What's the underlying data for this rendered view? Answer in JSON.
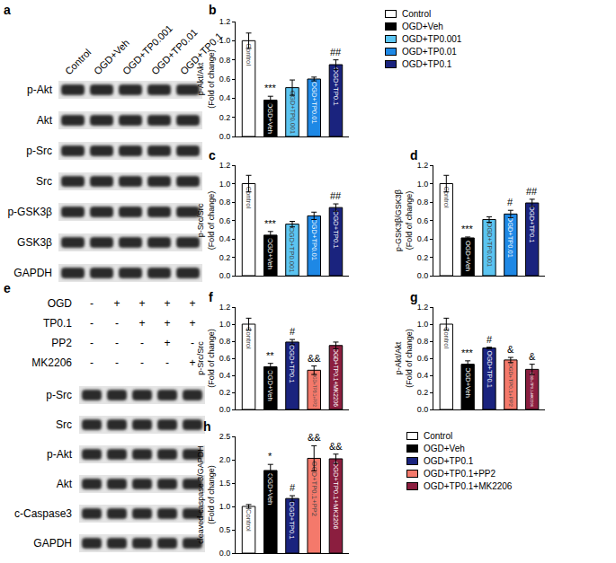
{
  "chart_data": [
    {
      "type": "bar",
      "title": "b",
      "y_label": "p-Akt/Akt (Fold of change)",
      "categories": [
        "Control",
        "OGD+Veh",
        "OGD+TP0.001",
        "OGD+TP0.01",
        "OGD+TP0.1"
      ],
      "values": [
        1.0,
        0.38,
        0.51,
        0.6,
        0.75
      ],
      "errors": [
        0.08,
        0.04,
        0.08,
        0.02,
        0.05
      ],
      "annotations": [
        null,
        "***",
        null,
        null,
        "##"
      ],
      "colors": [
        "#ffffff",
        "#000000",
        "#5bc4f1",
        "#1e88e5",
        "#1a237e"
      ],
      "ylim": [
        0,
        1.2
      ],
      "yticks": [
        {
          "value": 0,
          "label": "0.0"
        },
        {
          "value": 0.2,
          "label": "0.2"
        },
        {
          "value": 0.4,
          "label": "0.4"
        },
        {
          "value": 0.6,
          "label": "0.6"
        },
        {
          "value": 0.8,
          "label": "0.8"
        },
        {
          "value": 1.0,
          "label": "1.0"
        },
        {
          "value": 1.2,
          "label": "1.2"
        }
      ],
      "tick_labels": "y",
      "grid": false,
      "legend": "right"
    },
    {
      "type": "bar",
      "title": "c",
      "y_label": "p-Src/Src (Fold of change)",
      "categories": [
        "Control",
        "OGD+Veh",
        "OGD+TP0.001",
        "OGD+TP0.01",
        "OGD+TP0.1"
      ],
      "values": [
        1.0,
        0.44,
        0.56,
        0.65,
        0.74
      ],
      "errors": [
        0.09,
        0.04,
        0.03,
        0.04,
        0.04
      ],
      "annotations": [
        null,
        "***",
        null,
        null,
        "##"
      ],
      "colors": [
        "#ffffff",
        "#000000",
        "#5bc4f1",
        "#1e88e5",
        "#1a237e"
      ],
      "ylim": [
        0,
        1.2
      ],
      "yticks": [
        {
          "value": 0,
          "label": "0.0"
        },
        {
          "value": 0.2,
          "label": "0.2"
        },
        {
          "value": 0.4,
          "label": "0.4"
        },
        {
          "value": 0.6,
          "label": "0.6"
        },
        {
          "value": 0.8,
          "label": "0.8"
        },
        {
          "value": 1.0,
          "label": "1.0"
        },
        {
          "value": 1.2,
          "label": "1.2"
        }
      ],
      "tick_labels": "y",
      "grid": false
    },
    {
      "type": "bar",
      "title": "d",
      "y_label": "p-GSK3β/GSK3β (Fold of change)",
      "categories": [
        "Control",
        "OGD+Veh",
        "OGD+TP0.001",
        "OGD+TP0.01",
        "OGD+TP0.1"
      ],
      "values": [
        1.0,
        0.41,
        0.61,
        0.67,
        0.79
      ],
      "errors": [
        0.09,
        0.01,
        0.03,
        0.04,
        0.04
      ],
      "annotations": [
        null,
        "***",
        null,
        "#",
        "##"
      ],
      "colors": [
        "#ffffff",
        "#000000",
        "#5bc4f1",
        "#1e88e5",
        "#1a237e"
      ],
      "ylim": [
        0,
        1.2
      ],
      "yticks": [
        {
          "value": 0,
          "label": "0.0"
        },
        {
          "value": 0.2,
          "label": "0.2"
        },
        {
          "value": 0.4,
          "label": "0.4"
        },
        {
          "value": 0.6,
          "label": "0.6"
        },
        {
          "value": 0.8,
          "label": "0.8"
        },
        {
          "value": 1.0,
          "label": "1.0"
        },
        {
          "value": 1.2,
          "label": "1.2"
        }
      ],
      "tick_labels": "y",
      "grid": false
    },
    {
      "type": "bar",
      "title": "f",
      "y_label": "p-Src/Src (Fold of change)",
      "categories": [
        "Control",
        "OGD+Veh",
        "OGD+TP0.1",
        "OGD+TP0.1+PP2",
        "OGD+TP0.1+MK2206"
      ],
      "values": [
        1.0,
        0.5,
        0.79,
        0.46,
        0.75
      ],
      "errors": [
        0.07,
        0.04,
        0.03,
        0.05,
        0.04
      ],
      "annotations": [
        null,
        "**",
        "#",
        "&&",
        null
      ],
      "colors": [
        "#ffffff",
        "#000000",
        "#1a237e",
        "#f4796b",
        "#8b1e3f"
      ],
      "ylim": [
        0,
        1.2
      ],
      "yticks": [
        {
          "value": 0,
          "label": "0.0"
        },
        {
          "value": 0.2,
          "label": "0.2"
        },
        {
          "value": 0.4,
          "label": "0.4"
        },
        {
          "value": 0.6,
          "label": "0.6"
        },
        {
          "value": 0.8,
          "label": "0.8"
        },
        {
          "value": 1.0,
          "label": "1.0"
        },
        {
          "value": 1.2,
          "label": "1.2"
        }
      ],
      "tick_labels": "y",
      "grid": false
    },
    {
      "type": "bar",
      "title": "g",
      "y_label": "p-Akt/Akt (Fold of change)",
      "categories": [
        "Control",
        "OGD+Veh",
        "OGD+TP0.1",
        "OGD+TP0.1+PP2",
        "OGD+TP0.1+MK2206"
      ],
      "values": [
        1.0,
        0.53,
        0.72,
        0.58,
        0.47
      ],
      "errors": [
        0.07,
        0.04,
        0.01,
        0.03,
        0.06
      ],
      "annotations": [
        null,
        "***",
        "#",
        "&",
        "&"
      ],
      "colors": [
        "#ffffff",
        "#000000",
        "#1a237e",
        "#f4796b",
        "#8b1e3f"
      ],
      "ylim": [
        0,
        1.2
      ],
      "yticks": [
        {
          "value": 0,
          "label": "0.0"
        },
        {
          "value": 0.2,
          "label": "0.2"
        },
        {
          "value": 0.4,
          "label": "0.4"
        },
        {
          "value": 0.6,
          "label": "0.6"
        },
        {
          "value": 0.8,
          "label": "0.8"
        },
        {
          "value": 1.0,
          "label": "1.0"
        },
        {
          "value": 1.2,
          "label": "1.2"
        }
      ],
      "tick_labels": "y",
      "grid": false
    },
    {
      "type": "bar",
      "title": "h",
      "y_label": "cleaved-caspase 3/GAPDH (Fold of change)",
      "categories": [
        "Control",
        "OGD+Veh",
        "OGD+TP0.1",
        "OGD+TP0.1+PP2",
        "OGD+TP0.1+MK2206"
      ],
      "values": [
        1.0,
        1.77,
        1.17,
        2.03,
        2.02
      ],
      "errors": [
        0.04,
        0.13,
        0.06,
        0.27,
        0.1
      ],
      "annotations": [
        null,
        "*",
        "#",
        "&&",
        "&&"
      ],
      "colors": [
        "#ffffff",
        "#000000",
        "#1a237e",
        "#f4796b",
        "#8b1e3f"
      ],
      "ylim": [
        0,
        2.5
      ],
      "yticks": [
        {
          "value": 0,
          "label": "0.0"
        },
        {
          "value": 0.5,
          "label": "0.5"
        },
        {
          "value": 1.0,
          "label": "1.0"
        },
        {
          "value": 1.5,
          "label": "1.5"
        },
        {
          "value": 2.0,
          "label": "2.0"
        },
        {
          "value": 2.5,
          "label": "2.5"
        }
      ],
      "tick_labels": "y",
      "grid": false,
      "legend": "right"
    }
  ],
  "blots": [
    {
      "title": "a",
      "lanes": [
        "Control",
        "OGD+Veh",
        "OGD+TP0.001",
        "OGD+TP0.01",
        "OGD+TP0.1"
      ],
      "rows": [
        "p-Akt",
        "Akt",
        "p-Src",
        "Src",
        "p-GSK3β",
        "GSK3β",
        "GAPDH"
      ]
    },
    {
      "title": "e",
      "conditions": [
        {
          "label": "OGD",
          "signs": [
            "-",
            "+",
            "+",
            "+",
            "+"
          ]
        },
        {
          "label": "TP0.1",
          "signs": [
            "-",
            "-",
            "+",
            "+",
            "+"
          ]
        },
        {
          "label": "PP2",
          "signs": [
            "-",
            "-",
            "-",
            "+",
            "-"
          ]
        },
        {
          "label": "MK2206",
          "signs": [
            "-",
            "-",
            "-",
            "-",
            "+"
          ]
        }
      ],
      "rows": [
        "p-Src",
        "Src",
        "p-Akt",
        "Akt",
        "c-Caspase3",
        "GAPDH"
      ]
    }
  ]
}
